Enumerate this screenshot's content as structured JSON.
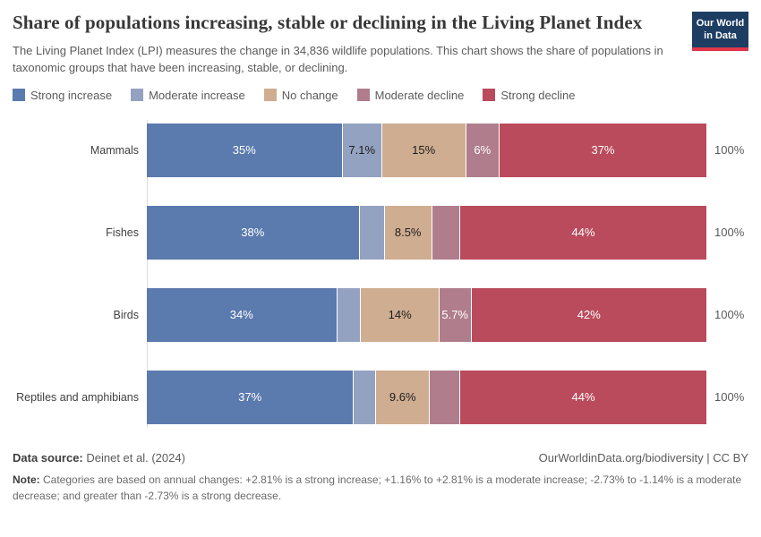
{
  "header": {
    "title": "Share of populations increasing, stable or declining in the Living Planet Index",
    "subtitle": "The Living Planet Index (LPI) measures the change in 34,836 wildlife populations. This chart shows the share of populations in taxonomic groups that have been increasing, stable, or declining.",
    "logo": {
      "line1": "Our World",
      "line2": "in Data",
      "bg_color": "#1d3d63",
      "accent_color": "#e0364a"
    }
  },
  "chart_data": {
    "type": "bar",
    "orientation": "horizontal",
    "stacked": true,
    "unit": "%",
    "xlim": [
      0,
      100
    ],
    "legend_position": "top",
    "grid": false,
    "total_label": "100%",
    "categories": [
      "Mammals",
      "Fishes",
      "Birds",
      "Reptiles and amphibians"
    ],
    "series": [
      {
        "name": "Strong increase",
        "color": "#5b7aae",
        "text_color": "#ffffff",
        "values": [
          35,
          38,
          34,
          37
        ],
        "labels": [
          "35%",
          "38%",
          "34%",
          "37%"
        ]
      },
      {
        "name": "Moderate increase",
        "color": "#94a2c1",
        "text_color": "#1d1d1d",
        "values": [
          7.1,
          4.5,
          4.3,
          4.0
        ],
        "labels": [
          "7.1%",
          "",
          "",
          ""
        ]
      },
      {
        "name": "No change",
        "color": "#cfad90",
        "text_color": "#1d1d1d",
        "values": [
          15,
          8.5,
          14,
          9.6
        ],
        "labels": [
          "15%",
          "8.5%",
          "14%",
          "9.6%"
        ]
      },
      {
        "name": "Moderate decline",
        "color": "#b07d8c",
        "text_color": "#ffffff",
        "values": [
          6,
          5.0,
          5.7,
          5.4
        ],
        "labels": [
          "6%",
          "",
          "5.7%",
          ""
        ]
      },
      {
        "name": "Strong decline",
        "color": "#ba4b5c",
        "text_color": "#ffffff",
        "values": [
          37,
          44,
          42,
          44
        ],
        "labels": [
          "37%",
          "44%",
          "42%",
          "44%"
        ]
      }
    ]
  },
  "footer": {
    "datasource_label": "Data source:",
    "datasource_value": " Deinet et al. (2024)",
    "link": "OurWorldinData.org/biodiversity | CC BY",
    "note_label": "Note:",
    "note_text": " Categories are based on annual changes: +2.81% is a strong increase; +1.16% to +2.81% is a moderate increase; -2.73% to -1.14% is a moderate decrease; and greater than -2.73% is a strong decrease."
  }
}
